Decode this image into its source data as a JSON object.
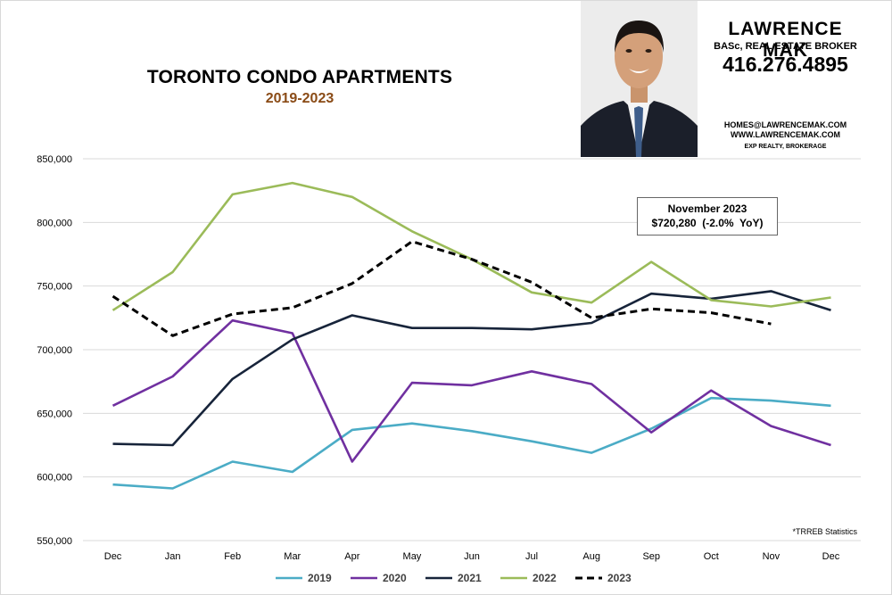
{
  "header": {
    "title": "TORONTO CONDO APARTMENTS",
    "subtitle": "2019-2023"
  },
  "agent": {
    "name": "LAWRENCE MAK",
    "title": "BASc, REAL ESTATE BROKER",
    "phone": "416.276.4895",
    "email": "HOMES@LAWRENCEMAK.COM",
    "website": "WWW.LAWRENCEMAK.COM",
    "brokerage": "EXP REALTY, BROKERAGE"
  },
  "callout": {
    "line1": "November 2023",
    "line2": "$720,280  (-2.0%  YoY)"
  },
  "source_note": "*TRREB Statistics",
  "colors": {
    "s2019": "#4bacc6",
    "s2020": "#7030a0",
    "s2021": "#17243a",
    "s2022": "#9bbb59",
    "s2023": "#000000",
    "grid": "#d9d9d9",
    "subtitle": "#8a4b16"
  },
  "chart_data": {
    "type": "line",
    "title": "TORONTO CONDO APARTMENTS",
    "subtitle": "2019-2023",
    "categories": [
      "Dec",
      "Jan",
      "Feb",
      "Mar",
      "Apr",
      "May",
      "Jun",
      "Jul",
      "Aug",
      "Sep",
      "Oct",
      "Nov",
      "Dec"
    ],
    "ylim": [
      550000,
      850000
    ],
    "yticks": [
      550000,
      600000,
      650000,
      700000,
      750000,
      800000,
      850000
    ],
    "ytick_labels": [
      "550,000",
      "600,000",
      "650,000",
      "700,000",
      "750,000",
      "800,000",
      "850,000"
    ],
    "grid": true,
    "legend_position": "bottom",
    "series": [
      {
        "name": "2019",
        "color": "#4bacc6",
        "dashed": false,
        "values": [
          594000,
          591000,
          612000,
          604000,
          637000,
          642000,
          636000,
          628000,
          619000,
          638000,
          662000,
          660000,
          656000
        ]
      },
      {
        "name": "2020",
        "color": "#7030a0",
        "dashed": false,
        "values": [
          656000,
          679000,
          723000,
          713000,
          612000,
          674000,
          672000,
          683000,
          673000,
          635000,
          668000,
          640000,
          625000
        ]
      },
      {
        "name": "2021",
        "color": "#17243a",
        "dashed": false,
        "values": [
          626000,
          625000,
          677000,
          708000,
          727000,
          717000,
          717000,
          716000,
          721000,
          744000,
          740000,
          746000,
          731000
        ]
      },
      {
        "name": "2022",
        "color": "#9bbb59",
        "dashed": false,
        "values": [
          731000,
          761000,
          822000,
          831000,
          820000,
          793000,
          771000,
          745000,
          737000,
          769000,
          739000,
          734000,
          741000
        ]
      },
      {
        "name": "2023",
        "color": "#000000",
        "dashed": true,
        "values": [
          742000,
          711000,
          728000,
          733000,
          752000,
          785000,
          771000,
          753000,
          725000,
          732000,
          729000,
          720280,
          null
        ]
      }
    ]
  }
}
